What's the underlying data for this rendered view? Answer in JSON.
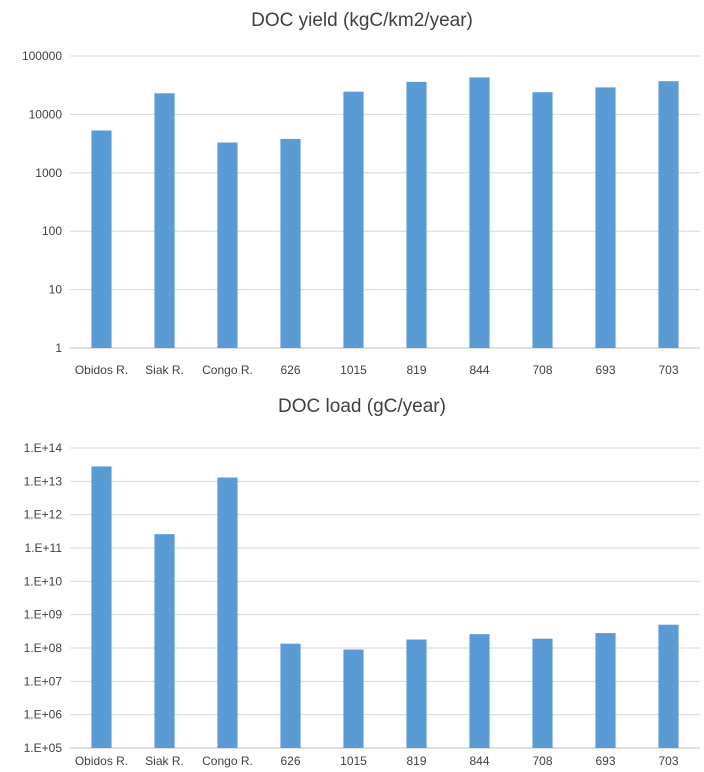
{
  "chart_data": [
    {
      "type": "bar",
      "title": "DOC yield (kgC/km2/year)",
      "xlabel": "",
      "ylabel": "",
      "yscale": "log",
      "ylim": [
        1,
        100000
      ],
      "grid": true,
      "color": "#5b9bd5",
      "yticks": [
        "1",
        "10",
        "100",
        "1000",
        "10000",
        "100000"
      ],
      "categories": [
        "Obidos R.",
        "Siak R.",
        "Congo R.",
        "626",
        "1015",
        "819",
        "844",
        "708",
        "693",
        "703"
      ],
      "values": [
        5300,
        23000,
        3300,
        3800,
        24500,
        36000,
        43000,
        24000,
        29000,
        37000
      ]
    },
    {
      "type": "bar",
      "title": "DOC load (gC/year)",
      "xlabel": "",
      "ylabel": "",
      "yscale": "log",
      "ylim": [
        100000,
        100000000000000
      ],
      "grid": true,
      "color": "#5b9bd5",
      "yticks": [
        "1.E+05",
        "1.E+06",
        "1.E+07",
        "1.E+08",
        "1.E+09",
        "1.E+10",
        "1.E+11",
        "1.E+12",
        "1.E+13",
        "1.E+14"
      ],
      "categories": [
        "Obidos R.",
        "Siak R.",
        "Congo R.",
        "626",
        "1015",
        "819",
        "844",
        "708",
        "693",
        "703"
      ],
      "values": [
        28000000000000,
        260000000000,
        13000000000000,
        135000000,
        90000000,
        180000000,
        260000000,
        190000000,
        280000000,
        500000000
      ]
    }
  ]
}
